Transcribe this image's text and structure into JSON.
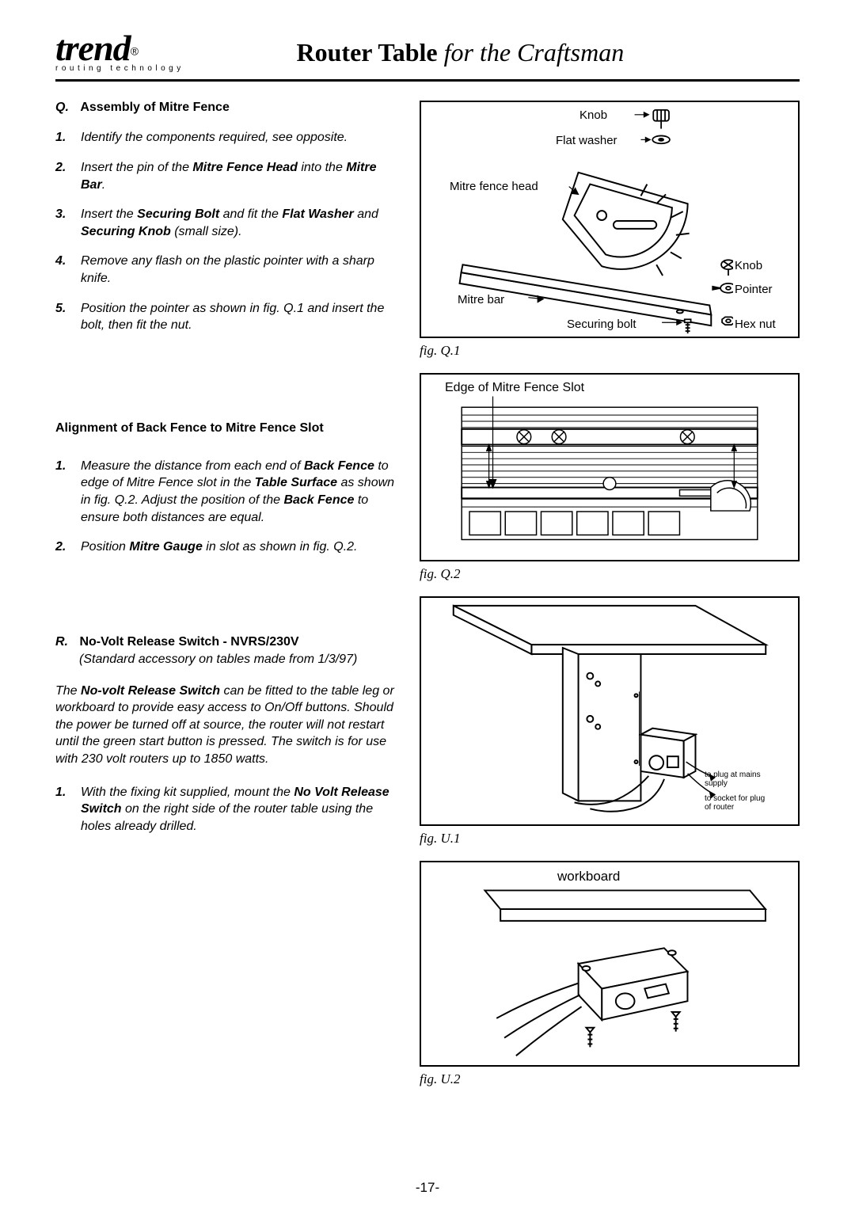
{
  "header": {
    "logo_main": "trend",
    "logo_reg": "®",
    "logo_tagline": "routing technology",
    "title_bold": "Router Table",
    "title_italic": " for the Craftsman"
  },
  "sectionQ": {
    "label": "Q.",
    "title": "Assembly of Mitre Fence",
    "steps": [
      {
        "n": "1.",
        "html": "Identify the components required, see opposite."
      },
      {
        "n": "2.",
        "html": "Insert the pin of the <span class='b'>Mitre Fence Head</span> into the <span class='b'>Mitre Bar</span>."
      },
      {
        "n": "3.",
        "html": "Insert the <span class='b'>Securing Bolt</span> and fit the <span class='b'>Flat Washer</span> and <span class='b'>Securing Knob</span> (small size)."
      },
      {
        "n": "4.",
        "html": "Remove any flash on the plastic pointer with a sharp knife."
      },
      {
        "n": "5.",
        "html": "Position the pointer as shown in fig. Q.1 and insert the bolt, then fit the nut."
      }
    ]
  },
  "alignment": {
    "title": "Alignment of Back Fence to Mitre Fence Slot",
    "steps": [
      {
        "n": "1.",
        "html": "Measure the distance from each end of <span class='b'>Back Fence</span> to edge of Mitre Fence slot in the <span class='b'>Table Surface</span> as shown in fig. Q.2.  Adjust the position of the <span class='b'>Back Fence</span> to ensure both distances are equal."
      },
      {
        "n": "2.",
        "html": "Position <span class='b'>Mitre Gauge</span> in slot as shown in fig. Q.2."
      }
    ]
  },
  "sectionR": {
    "label": "R.",
    "title": "No-Volt Release Switch - NVRS/230V",
    "subtitle": "(Standard accessory on tables made from 1/3/97)",
    "para": "The <span class='b'>No-volt Release Switch</span> can be fitted to the table leg or workboard to provide easy access to On/Off buttons. Should the power be turned off at source, the router will not restart until the green start button is pressed.  The switch is for use with 230 volt routers up to 1850 watts.",
    "steps": [
      {
        "n": "1.",
        "html": "With the fixing kit supplied, mount the <span class='b'>No Volt Release Switch</span> on the right side of the router table using the holes already drilled."
      }
    ]
  },
  "figQ1": {
    "caption": "fig. Q.1",
    "labels": {
      "knob_top": "Knob",
      "flat_washer": "Flat washer",
      "mitre_fence_head": "Mitre fence head",
      "knob_right": "Knob",
      "pointer": "Pointer",
      "mitre_bar": "Mitre bar",
      "hex_nut": "Hex nut",
      "securing_bolt": "Securing bolt"
    }
  },
  "figQ2": {
    "caption": "fig. Q.2",
    "edge_label": "Edge of Mitre Fence Slot"
  },
  "figU1": {
    "caption": "fig. U.1",
    "to_plug": "to plug at mains supply",
    "to_socket": "to socket for plug of router"
  },
  "figU2": {
    "caption": "fig. U.2",
    "workboard": "workboard"
  },
  "page_number": "-17-"
}
